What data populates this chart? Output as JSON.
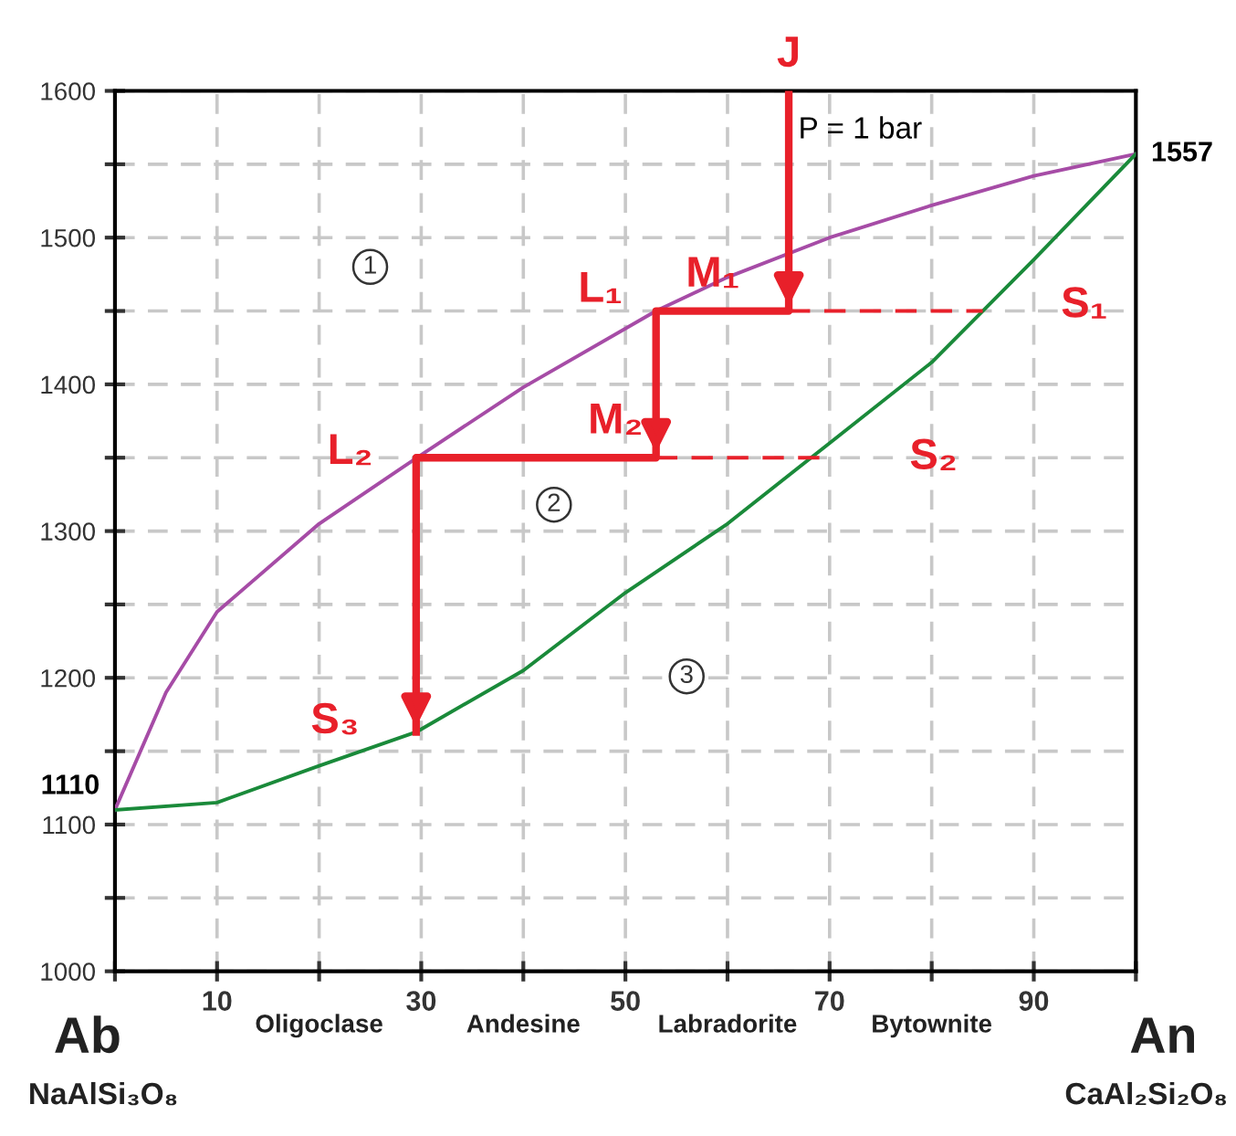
{
  "chart_data": {
    "type": "line",
    "x": [
      0,
      5,
      10,
      20,
      30,
      40,
      53,
      60,
      70,
      80,
      90,
      100
    ],
    "series": [
      {
        "color": "#a64ca6",
        "values": [
          1110,
          1190,
          1245,
          1305,
          1352,
          1398,
          1450,
          1473,
          1500,
          1522,
          1542,
          1557
        ]
      },
      {
        "color": "#1a8a3a",
        "x": [
          0,
          10,
          20,
          29.5,
          40,
          50,
          60,
          70,
          80,
          85,
          90,
          100
        ],
        "values": [
          1110,
          1115,
          1140,
          1163,
          1205,
          1258,
          1305,
          1360,
          1415,
          1450,
          1485,
          1557
        ]
      },
      {
        "color": "#e8202a",
        "x": [
          66,
          66,
          53,
          53,
          29.5,
          29.5
        ],
        "values": [
          1600,
          1450,
          1450,
          1350,
          1350,
          1163
        ]
      },
      {
        "color": "#e8202a",
        "line_style": "dashed",
        "x": [
          66,
          85
        ],
        "values": [
          1450,
          1450
        ]
      },
      {
        "color": "#e8202a",
        "line_style": "dashed",
        "x": [
          53,
          69
        ],
        "values": [
          1350,
          1350
        ]
      }
    ],
    "xlim": [
      0,
      100
    ],
    "ylim": [
      1000,
      1600
    ],
    "xticks": [
      {
        "value": 0,
        "label": null
      },
      10,
      {
        "value": 20,
        "label": null
      },
      30,
      {
        "value": 40,
        "label": null
      },
      50,
      {
        "value": 60,
        "label": null
      },
      70,
      {
        "value": 80,
        "label": null
      },
      90,
      {
        "value": 100,
        "label": null
      }
    ],
    "yticks": [
      1000,
      {
        "value": 1050,
        "label": null
      },
      1100,
      {
        "value": 1150,
        "label": null
      },
      1200,
      {
        "value": 1250,
        "label": null
      },
      1300,
      {
        "value": 1350,
        "label": null
      },
      1400,
      {
        "value": 1450,
        "label": null
      },
      1500,
      {
        "value": 1550,
        "label": null
      },
      1600
    ],
    "grid": true,
    "annotations": [
      {
        "text": "J",
        "x": 66,
        "y": 1600
      },
      {
        "text": "M₁",
        "x": 66,
        "y": 1450
      },
      {
        "text": "L₁",
        "x": 53,
        "y": 1450
      },
      {
        "text": "S₁",
        "x": 85,
        "y": 1450
      },
      {
        "text": "M₂",
        "x": 53,
        "y": 1350
      },
      {
        "text": "L₂",
        "x": 29.5,
        "y": 1350
      },
      {
        "text": "S₂",
        "x": 69,
        "y": 1350
      },
      {
        "text": "S₃",
        "x": 29.5,
        "y": 1163
      },
      {
        "text": "1557",
        "x": 100,
        "y": 1557
      },
      {
        "text": "1110",
        "x": 0,
        "y": 1110
      },
      "Ab",
      "An",
      "NaAlSi₃O₈",
      "CaAl₂Si₂O₈",
      "Oligoclase",
      "Andesine",
      "Labradorite",
      "Bytownite",
      "P = 1 bar",
      "1",
      "2",
      "3"
    ]
  }
}
